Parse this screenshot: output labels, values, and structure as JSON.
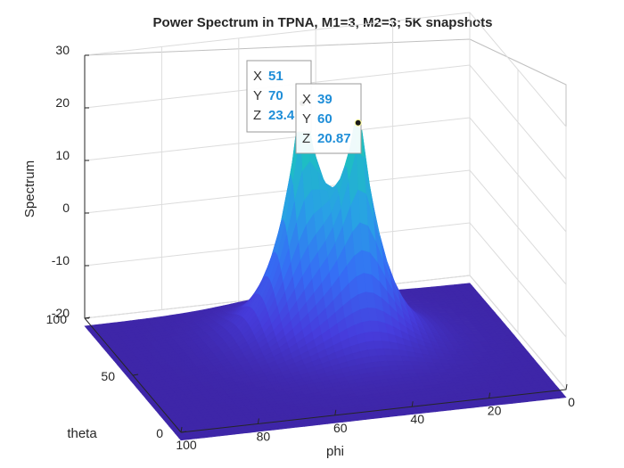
{
  "chart_data": {
    "type": "surface",
    "title": "Power Spectrum in TPNA, M1=3, M2=3; 5K snapshots",
    "xlabel": "phi",
    "ylabel": "theta",
    "zlabel": "Spectrum",
    "xlim": [
      0,
      100
    ],
    "ylim": [
      0,
      100
    ],
    "zlim": [
      -20,
      30
    ],
    "xticks": [
      "0",
      "20",
      "40",
      "60",
      "80",
      "100"
    ],
    "yticks": [
      "0",
      "50",
      "100"
    ],
    "zticks": [
      "-20",
      "-10",
      "0",
      "10",
      "20",
      "30"
    ],
    "grid": true,
    "colormap": "parula",
    "colors": {
      "low": "#3e26a8",
      "mid": "#2f96e0",
      "high": "#24c5a0"
    },
    "floor_level": -21.5,
    "peaks": [
      {
        "phi": 51,
        "theta": 70,
        "spectrum": 23.4
      },
      {
        "phi": 39,
        "theta": 60,
        "spectrum": 20.87
      }
    ],
    "datatips": [
      {
        "x_key": "X",
        "x": "51",
        "y_key": "Y",
        "y": "70",
        "z_key": "Z",
        "z": "23.4"
      },
      {
        "x_key": "X",
        "x": "39",
        "y_key": "Y",
        "y": "60",
        "z_key": "Z",
        "z": "20.87"
      }
    ]
  }
}
